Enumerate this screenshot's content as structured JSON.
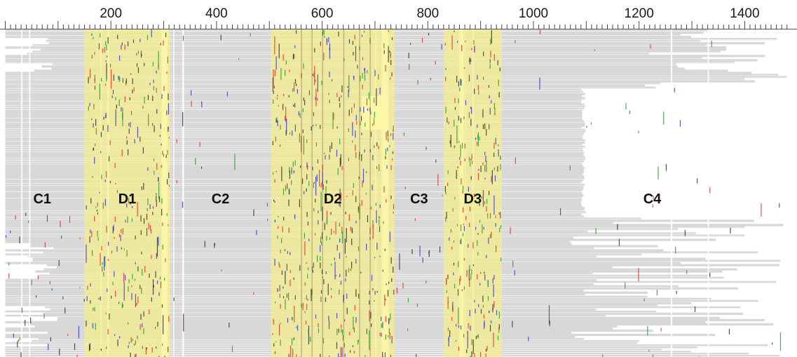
{
  "ruler": {
    "ticks": [
      {
        "value": 200,
        "label": "200"
      },
      {
        "value": 400,
        "label": "400"
      },
      {
        "value": 600,
        "label": "600"
      },
      {
        "value": 800,
        "label": "800"
      },
      {
        "value": 1000,
        "label": "1000"
      },
      {
        "value": 1200,
        "label": "1200"
      },
      {
        "value": 1400,
        "label": "1400"
      }
    ],
    "minor_step": 10,
    "major_step": 100,
    "range": [
      0,
      1480
    ]
  },
  "colors": {
    "gap": "#ffffff",
    "aligned": "#d8d8d8",
    "highlight": "#f5ef8a",
    "sub_a": "#e8342a",
    "sub_c": "#3a3ad0",
    "sub_g": "#2f9a2f",
    "sub_t": "#333333"
  },
  "regions": [
    {
      "label": "C1",
      "type": "conserved",
      "start": 0,
      "end": 150
    },
    {
      "label": "D1",
      "type": "divergent",
      "start": 150,
      "end": 312
    },
    {
      "label": "C2",
      "type": "conserved",
      "start": 312,
      "end": 503
    },
    {
      "label": "D2",
      "type": "divergent",
      "start": 503,
      "end": 737
    },
    {
      "label": "C3",
      "type": "conserved",
      "start": 737,
      "end": 830
    },
    {
      "label": "D3",
      "type": "divergent",
      "start": 830,
      "end": 940
    },
    {
      "label": "C4",
      "type": "conserved",
      "start": 940,
      "end": 1480
    }
  ]
}
